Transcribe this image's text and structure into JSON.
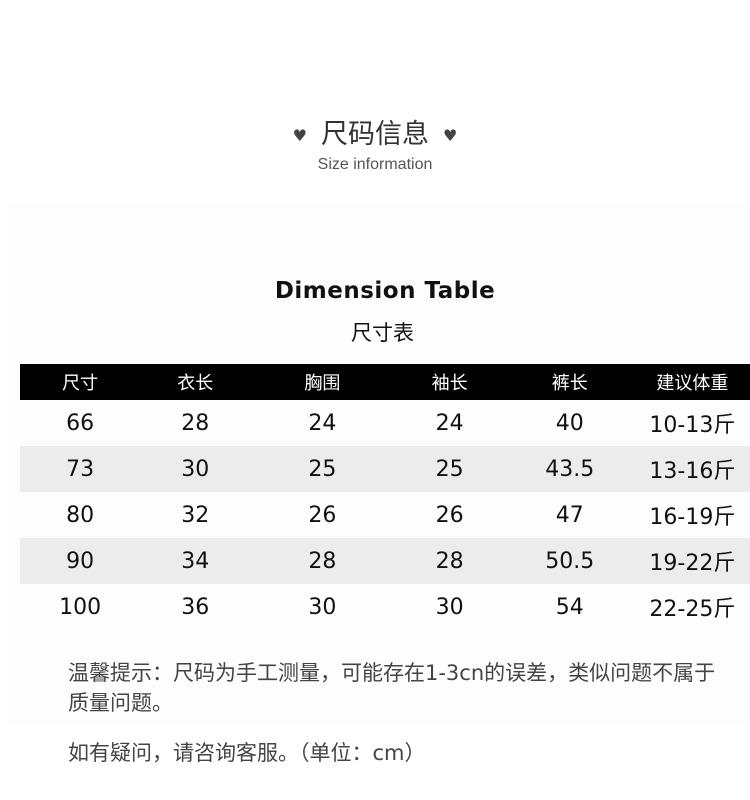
{
  "header": {
    "title": "尺码信息",
    "subtitle": "Size information",
    "icon": "heart-icon"
  },
  "table": {
    "title": "Dimension Table",
    "subtitle": "尺寸表",
    "columns": [
      "尺寸",
      "衣长",
      "胸围",
      "袖长",
      "裤长",
      "建议体重"
    ],
    "rows": [
      [
        "66",
        "28",
        "24",
        "24",
        "40",
        "10-13斤"
      ],
      [
        "73",
        "30",
        "25",
        "25",
        "43.5",
        "13-16斤"
      ],
      [
        "80",
        "32",
        "26",
        "26",
        "47",
        "16-19斤"
      ],
      [
        "90",
        "34",
        "28",
        "28",
        "50.5",
        "19-22斤"
      ],
      [
        "100",
        "36",
        "30",
        "30",
        "54",
        "22-25斤"
      ]
    ]
  },
  "notes": {
    "tip": "温馨提示：尺码为手工测量，可能存在1-3cn的误差，类似问题不属于质量问题。",
    "contact": "如有疑问，请咨询客服。（单位：cm）"
  }
}
